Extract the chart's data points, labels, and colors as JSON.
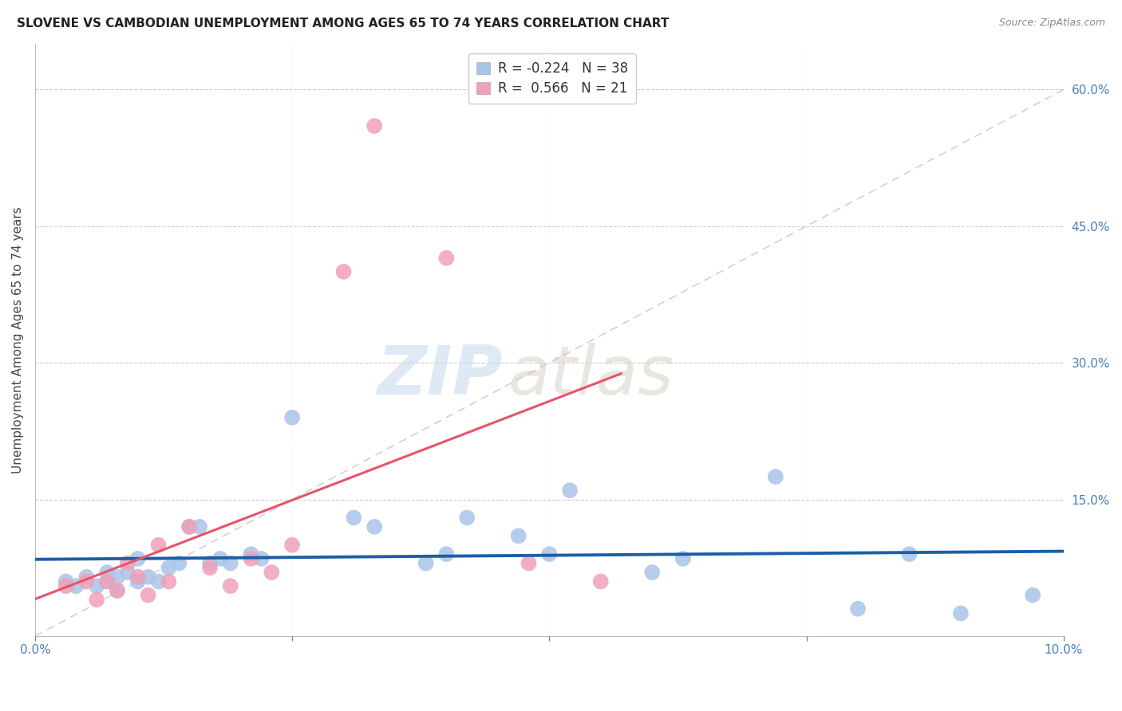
{
  "title": "SLOVENE VS CAMBODIAN UNEMPLOYMENT AMONG AGES 65 TO 74 YEARS CORRELATION CHART",
  "source": "Source: ZipAtlas.com",
  "ylabel": "Unemployment Among Ages 65 to 74 years",
  "xlim": [
    0.0,
    0.1
  ],
  "ylim": [
    0.0,
    0.65
  ],
  "yticks": [
    0.15,
    0.3,
    0.45,
    0.6
  ],
  "ytick_labels": [
    "15.0%",
    "30.0%",
    "45.0%",
    "60.0%"
  ],
  "xticks": [
    0.0,
    0.1
  ],
  "xtick_labels": [
    "0.0%",
    "10.0%"
  ],
  "legend_r_slovene": "-0.224",
  "legend_n_slovene": "38",
  "legend_r_cambodian": "0.566",
  "legend_n_cambodian": "21",
  "slovene_color": "#a8c4e8",
  "cambodian_color": "#f0a0b8",
  "slovene_line_color": "#1a5fa8",
  "cambodian_line_color": "#e8546a",
  "diagonal_color": "#cccccc",
  "background_color": "#ffffff",
  "watermark_zip": "ZIP",
  "watermark_atlas": "atlas",
  "slovene_x": [
    0.003,
    0.004,
    0.005,
    0.006,
    0.007,
    0.007,
    0.008,
    0.008,
    0.009,
    0.01,
    0.01,
    0.011,
    0.012,
    0.013,
    0.014,
    0.015,
    0.016,
    0.017,
    0.018,
    0.019,
    0.021,
    0.022,
    0.025,
    0.031,
    0.033,
    0.038,
    0.04,
    0.042,
    0.047,
    0.05,
    0.052,
    0.06,
    0.063,
    0.072,
    0.08,
    0.085,
    0.09,
    0.097
  ],
  "slovene_y": [
    0.06,
    0.055,
    0.065,
    0.055,
    0.07,
    0.06,
    0.065,
    0.05,
    0.07,
    0.06,
    0.085,
    0.065,
    0.06,
    0.075,
    0.08,
    0.12,
    0.12,
    0.08,
    0.085,
    0.08,
    0.09,
    0.085,
    0.24,
    0.13,
    0.12,
    0.08,
    0.09,
    0.13,
    0.11,
    0.09,
    0.16,
    0.07,
    0.085,
    0.175,
    0.03,
    0.09,
    0.025,
    0.045
  ],
  "cambodian_x": [
    0.003,
    0.005,
    0.006,
    0.007,
    0.008,
    0.009,
    0.01,
    0.011,
    0.012,
    0.013,
    0.015,
    0.017,
    0.019,
    0.021,
    0.023,
    0.025,
    0.03,
    0.033,
    0.04,
    0.048,
    0.055
  ],
  "cambodian_y": [
    0.055,
    0.06,
    0.04,
    0.06,
    0.05,
    0.08,
    0.065,
    0.045,
    0.1,
    0.06,
    0.12,
    0.075,
    0.055,
    0.085,
    0.07,
    0.1,
    0.4,
    0.56,
    0.415,
    0.08,
    0.06
  ]
}
